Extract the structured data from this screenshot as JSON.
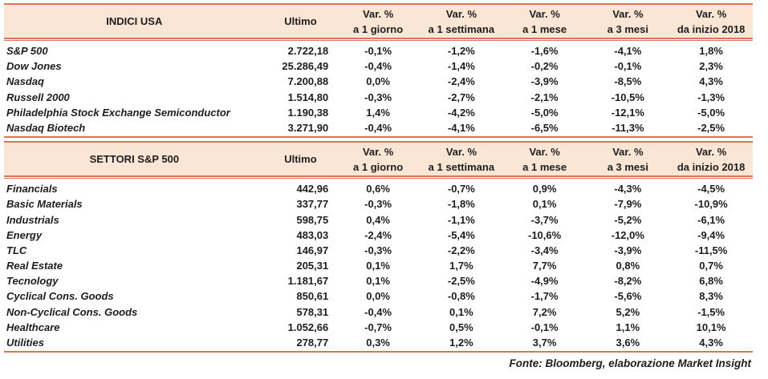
{
  "colors": {
    "accent_border": "#d9755a",
    "header_bg": "#fbe5d5",
    "text": "#1d1d1d"
  },
  "footer": "Fonte: Bloomberg, elaborazione Market Insight",
  "tables": [
    {
      "title": "INDICI USA",
      "ultimo_label": "Ultimo",
      "var_cols": [
        {
          "line1": "Var. %",
          "line2": "a 1 giorno"
        },
        {
          "line1": "Var. %",
          "line2": "a 1 settimana"
        },
        {
          "line1": "Var. %",
          "line2": "a 1 mese"
        },
        {
          "line1": "Var. %",
          "line2": "a 3 mesi"
        },
        {
          "line1": "Var. %",
          "line2": "da inizio 2018"
        }
      ],
      "rows": [
        {
          "name": "S&P 500",
          "ultimo": "2.722,18",
          "vars": [
            "-0,1%",
            "-1,2%",
            "-1,6%",
            "-4,1%",
            "1,8%"
          ]
        },
        {
          "name": "Dow Jones",
          "ultimo": "25.286,49",
          "vars": [
            "-0,4%",
            "-1,4%",
            "-0,2%",
            "-0,1%",
            "2,3%"
          ]
        },
        {
          "name": "Nasdaq",
          "ultimo": "7.200,88",
          "vars": [
            "0,0%",
            "-2,4%",
            "-3,9%",
            "-8,5%",
            "4,3%"
          ]
        },
        {
          "name": "Russell 2000",
          "ultimo": "1.514,80",
          "vars": [
            "-0,3%",
            "-2,7%",
            "-2,1%",
            "-10,5%",
            "-1,3%"
          ]
        },
        {
          "name": "Philadelphia Stock Exchange Semiconductor",
          "ultimo": "1.190,38",
          "vars": [
            "1,4%",
            "-4,2%",
            "-5,0%",
            "-12,1%",
            "-5,0%"
          ]
        },
        {
          "name": "Nasdaq Biotech",
          "ultimo": "3.271,90",
          "vars": [
            "-0,4%",
            "-4,1%",
            "-6,5%",
            "-11,3%",
            "-2,5%"
          ]
        }
      ]
    },
    {
      "title": "SETTORI S&P 500",
      "ultimo_label": "Ultimo",
      "var_cols": [
        {
          "line1": "Var. %",
          "line2": "a 1 giorno"
        },
        {
          "line1": "Var. %",
          "line2": "a 1 settimana"
        },
        {
          "line1": "Var. %",
          "line2": "a 1 mese"
        },
        {
          "line1": "Var. %",
          "line2": "a 3 mesi"
        },
        {
          "line1": "Var. %",
          "line2": "da inizio 2018"
        }
      ],
      "rows": [
        {
          "name": "Financials",
          "ultimo": "442,96",
          "vars": [
            "0,6%",
            "-0,7%",
            "0,9%",
            "-4,3%",
            "-4,5%"
          ]
        },
        {
          "name": "Basic Materials",
          "ultimo": "337,77",
          "vars": [
            "-0,3%",
            "-1,8%",
            "0,1%",
            "-7,9%",
            "-10,9%"
          ]
        },
        {
          "name": "Industrials",
          "ultimo": "598,75",
          "vars": [
            "0,4%",
            "-1,1%",
            "-3,7%",
            "-5,2%",
            "-6,1%"
          ]
        },
        {
          "name": "Energy",
          "ultimo": "483,03",
          "vars": [
            "-2,4%",
            "-5,4%",
            "-10,6%",
            "-12,0%",
            "-9,4%"
          ]
        },
        {
          "name": "TLC",
          "ultimo": "146,97",
          "vars": [
            "-0,3%",
            "-2,2%",
            "-3,4%",
            "-3,9%",
            "-11,5%"
          ]
        },
        {
          "name": "Real Estate",
          "ultimo": "205,31",
          "vars": [
            "0,1%",
            "1,7%",
            "7,7%",
            "0,8%",
            "0,7%"
          ]
        },
        {
          "name": "Tecnology",
          "ultimo": "1.181,67",
          "vars": [
            "0,1%",
            "-2,5%",
            "-4,9%",
            "-8,2%",
            "6,8%"
          ]
        },
        {
          "name": "Cyclical Cons. Goods",
          "ultimo": "850,61",
          "vars": [
            "0,0%",
            "-0,8%",
            "-1,7%",
            "-5,6%",
            "8,3%"
          ]
        },
        {
          "name": "Non-Cyclical Cons. Goods",
          "ultimo": "578,31",
          "vars": [
            "-0,4%",
            "0,1%",
            "7,2%",
            "5,2%",
            "-1,5%"
          ]
        },
        {
          "name": "Healthcare",
          "ultimo": "1.052,66",
          "vars": [
            "-0,7%",
            "0,5%",
            "-0,1%",
            "1,1%",
            "10,1%"
          ]
        },
        {
          "name": "Utilities",
          "ultimo": "278,77",
          "vars": [
            "0,3%",
            "1,2%",
            "3,7%",
            "3,6%",
            "4,3%"
          ]
        }
      ]
    }
  ]
}
